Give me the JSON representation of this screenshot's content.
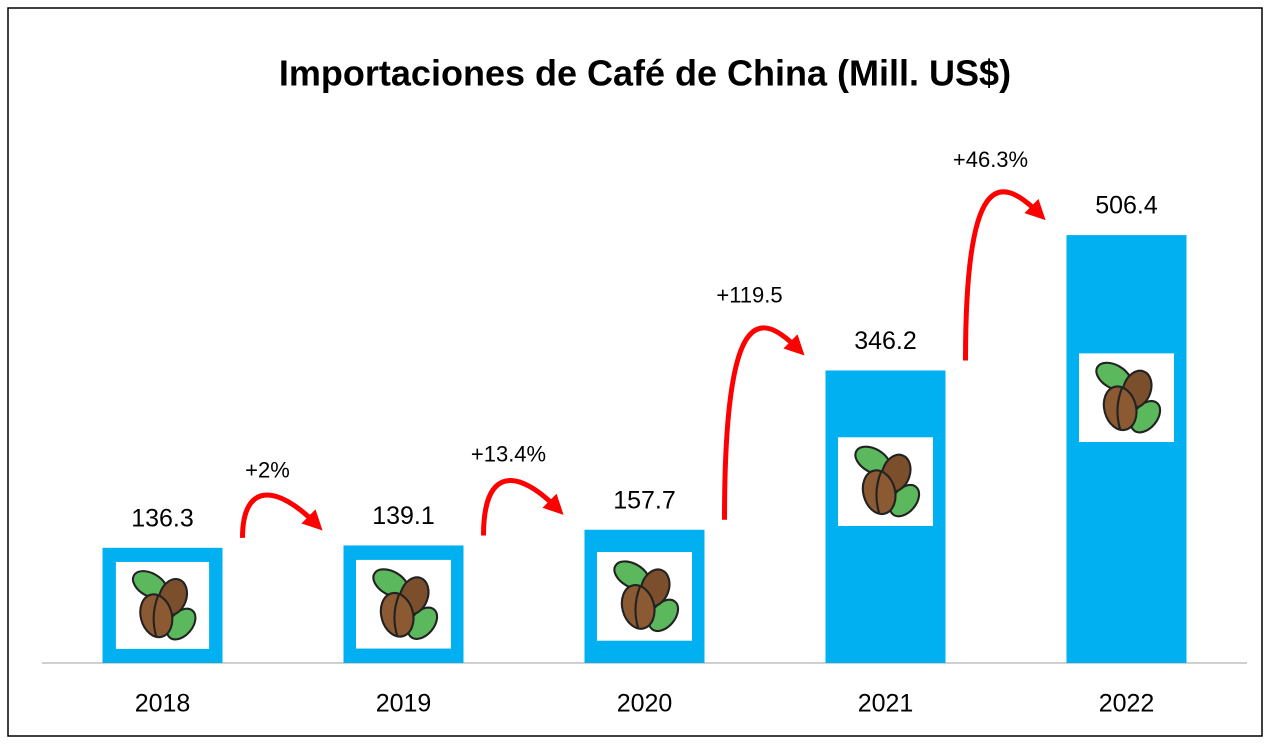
{
  "chart_data": {
    "type": "bar",
    "title": "Importaciones de Café de China (Mill. US$)",
    "categories": [
      "2018",
      "2019",
      "2020",
      "2021",
      "2022"
    ],
    "values": [
      136.3,
      139.1,
      157.7,
      346.2,
      506.4
    ],
    "color": "#00b0f0",
    "ylim": [
      0,
      600
    ],
    "annotations": [
      "+2%",
      "+13.4%",
      "+119.5",
      "+46.3%"
    ],
    "annotation_color": "#ff0000"
  }
}
